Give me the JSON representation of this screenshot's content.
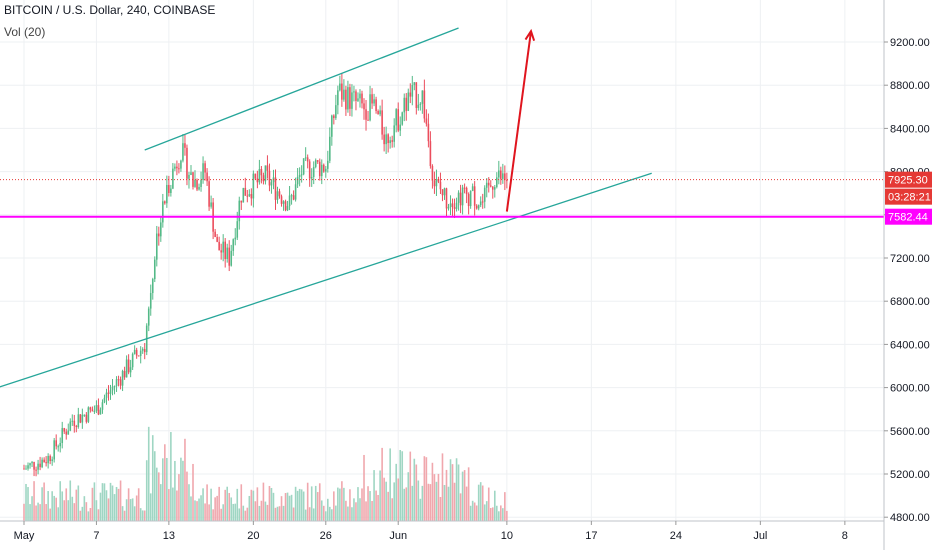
{
  "header": {
    "symbol_line": "BITCOIN / U.S. Dollar, 240, COINBASE",
    "volume_label": "Vol (20)"
  },
  "colors": {
    "up": "#53b987",
    "down": "#eb4d5c",
    "vol_up": "#9fd6c3",
    "vol_down": "#f0a7ad",
    "channel": "#26a69a",
    "support": "#ff00ff",
    "arrow": "#e0151e",
    "last_price_line": "#e53935",
    "grid": "#eef0f3"
  },
  "chart_data": {
    "type": "candlestick",
    "title": "BITCOIN / U.S. Dollar, 240, COINBASE",
    "y_axis": {
      "range": [
        4630,
        9680
      ],
      "ticks": [
        "4800.00",
        "5200.00",
        "5600.00",
        "6000.00",
        "6400.00",
        "6800.00",
        "7200.00",
        "7600.00",
        "8000.00",
        "8400.00",
        "8800.00",
        "9200.00"
      ],
      "tick_values": [
        4800,
        5200,
        5600,
        6000,
        6400,
        6800,
        7200,
        7600,
        8000,
        8400,
        8800,
        9200
      ]
    },
    "x_axis": {
      "start_date": "2019-05-01",
      "end_date": "2019-07-10",
      "ticks": [
        {
          "date": "2019-05-01",
          "label": "May"
        },
        {
          "date": "2019-05-07",
          "label": "7"
        },
        {
          "date": "2019-05-13",
          "label": "13"
        },
        {
          "date": "2019-05-20",
          "label": "20"
        },
        {
          "date": "2019-05-26",
          "label": "26"
        },
        {
          "date": "2019-06-01",
          "label": "Jun"
        },
        {
          "date": "2019-06-10",
          "label": "10"
        },
        {
          "date": "2019-06-17",
          "label": "17"
        },
        {
          "date": "2019-06-24",
          "label": "24"
        },
        {
          "date": "2019-07-01",
          "label": "Jul"
        },
        {
          "date": "2019-07-08",
          "label": "8"
        }
      ]
    },
    "price_path": [
      {
        "date": "2019-05-01",
        "price": 5250
      },
      {
        "date": "2019-05-03",
        "price": 5350
      },
      {
        "date": "2019-05-05",
        "price": 5700
      },
      {
        "date": "2019-05-07",
        "price": 5800
      },
      {
        "date": "2019-05-09",
        "price": 6100
      },
      {
        "date": "2019-05-11",
        "price": 6400
      },
      {
        "date": "2019-05-12",
        "price": 7400
      },
      {
        "date": "2019-05-13",
        "price": 7900
      },
      {
        "date": "2019-05-14",
        "price": 8200
      },
      {
        "date": "2019-05-15",
        "price": 7900
      },
      {
        "date": "2019-05-16",
        "price": 8000
      },
      {
        "date": "2019-05-17",
        "price": 7300
      },
      {
        "date": "2019-05-18",
        "price": 7200
      },
      {
        "date": "2019-05-19",
        "price": 7800
      },
      {
        "date": "2019-05-21",
        "price": 7950
      },
      {
        "date": "2019-05-23",
        "price": 7700
      },
      {
        "date": "2019-05-24",
        "price": 8000
      },
      {
        "date": "2019-05-25",
        "price": 8050
      },
      {
        "date": "2019-05-26",
        "price": 8050
      },
      {
        "date": "2019-05-27",
        "price": 8750
      },
      {
        "date": "2019-05-29",
        "price": 8600
      },
      {
        "date": "2019-05-30",
        "price": 8600
      },
      {
        "date": "2019-05-31",
        "price": 8300
      },
      {
        "date": "2019-06-01",
        "price": 8500
      },
      {
        "date": "2019-06-02",
        "price": 8700
      },
      {
        "date": "2019-06-03",
        "price": 8700
      },
      {
        "date": "2019-06-04",
        "price": 7900
      },
      {
        "date": "2019-06-05",
        "price": 7750
      },
      {
        "date": "2019-06-07",
        "price": 7800
      },
      {
        "date": "2019-06-08",
        "price": 7700
      },
      {
        "date": "2019-06-09",
        "price": 7950
      },
      {
        "date": "2019-06-10",
        "price": 7925
      }
    ],
    "volume_scale_max": 1000,
    "annotations": {
      "upper_channel": [
        {
          "date": "2019-05-11",
          "price": 8200
        },
        {
          "date": "2019-06-06",
          "price": 9330
        }
      ],
      "lower_channel": [
        {
          "date": "2019-04-25",
          "price": 5860
        },
        {
          "date": "2019-06-22",
          "price": 7985
        }
      ],
      "support_price": 7582.44,
      "projection_arrow": [
        {
          "date": "2019-06-10",
          "price": 7630
        },
        {
          "date": "2019-06-12",
          "price": 9300
        }
      ]
    },
    "last_price": {
      "label": "7925.30",
      "value": 7925.3
    },
    "countdown": {
      "label": "03:28:21"
    },
    "support_label": {
      "label": "7582.44",
      "value": 7582.44
    }
  }
}
